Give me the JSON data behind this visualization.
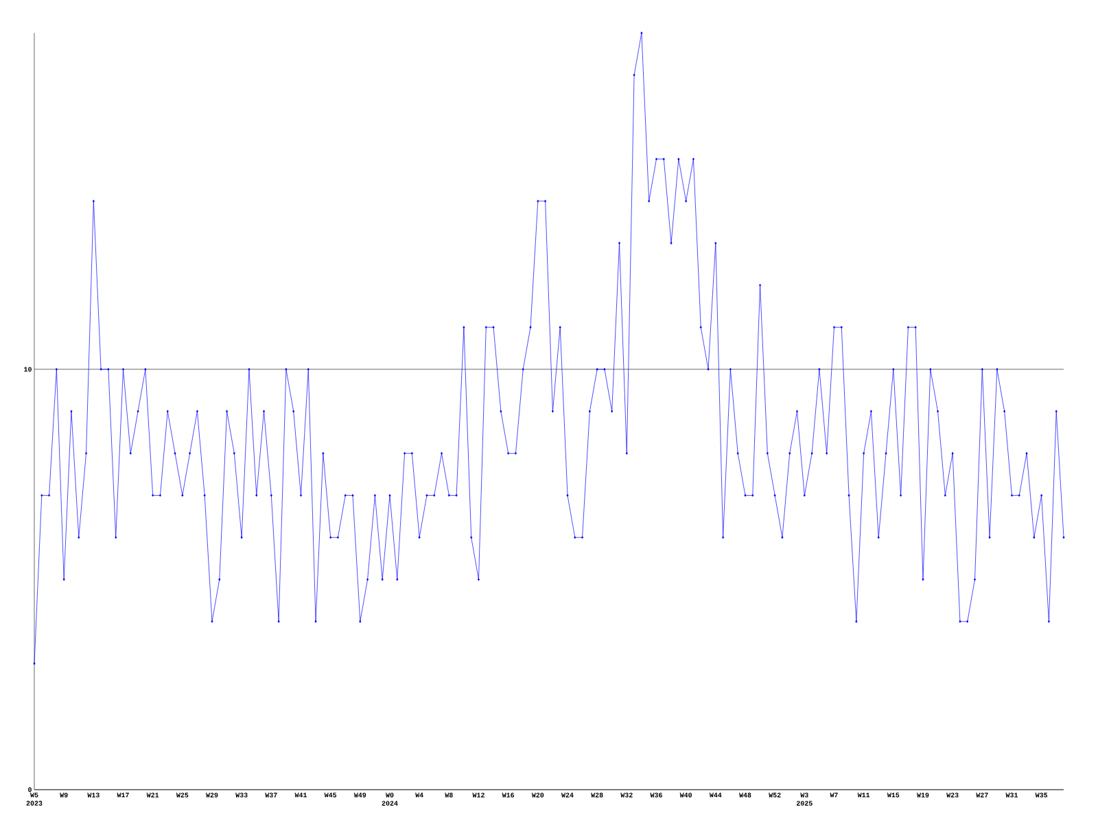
{
  "chart_data": {
    "type": "line",
    "categories": [
      "W5 2023",
      null,
      null,
      null,
      "W9",
      null,
      null,
      null,
      "W13",
      null,
      null,
      null,
      "W17",
      null,
      null,
      null,
      "W21",
      null,
      null,
      null,
      "W25",
      null,
      null,
      null,
      "W29",
      null,
      null,
      null,
      "W33",
      null,
      null,
      null,
      "W37",
      null,
      null,
      null,
      "W41",
      null,
      null,
      null,
      "W45",
      null,
      null,
      null,
      "W49",
      null,
      null,
      null,
      "W0 2024",
      null,
      null,
      null,
      "W4",
      null,
      null,
      null,
      "W8",
      null,
      null,
      null,
      "W12",
      null,
      null,
      null,
      "W16",
      null,
      null,
      null,
      "W20",
      null,
      null,
      null,
      "W24",
      null,
      null,
      null,
      "W28",
      null,
      null,
      null,
      "W32",
      null,
      null,
      null,
      "W36",
      null,
      null,
      null,
      "W40",
      null,
      null,
      null,
      "W44",
      null,
      null,
      null,
      "W48",
      null,
      null,
      null,
      "W52",
      null,
      null,
      null,
      "W3 2025",
      null,
      null,
      null,
      "W7",
      null,
      null,
      null,
      "W11",
      null,
      null,
      null,
      "W15",
      null,
      null,
      null,
      "W19",
      null,
      null,
      null,
      "W23",
      null,
      null,
      null,
      "W27",
      null,
      null,
      null,
      "W31",
      null,
      null,
      null,
      "W35",
      null,
      null,
      null
    ],
    "values": [
      3,
      7,
      7,
      10,
      5,
      9,
      6,
      8,
      14,
      10,
      10,
      6,
      10,
      8,
      9,
      10,
      7,
      7,
      9,
      8,
      7,
      8,
      9,
      7,
      4,
      5,
      9,
      8,
      6,
      10,
      7,
      9,
      7,
      4,
      10,
      9,
      7,
      10,
      4,
      8,
      6,
      6,
      7,
      7,
      4,
      5,
      7,
      5,
      7,
      5,
      8,
      8,
      6,
      7,
      7,
      8,
      7,
      7,
      11,
      6,
      5,
      11,
      11,
      9,
      8,
      8,
      10,
      11,
      14,
      14,
      9,
      11,
      7,
      6,
      6,
      9,
      10,
      10,
      9,
      13,
      8,
      17,
      18,
      14,
      15,
      15,
      13,
      15,
      14,
      15,
      11,
      10,
      13,
      6,
      10,
      8,
      7,
      7,
      12,
      8,
      7,
      6,
      8,
      9,
      7,
      8,
      10,
      8,
      11,
      11,
      7,
      4,
      8,
      9,
      6,
      8,
      10,
      7,
      11,
      11,
      5,
      10,
      9,
      7,
      8,
      4,
      4,
      5,
      10,
      6,
      10,
      9,
      7,
      7,
      8,
      6,
      7,
      4,
      9,
      6
    ],
    "color": "#0000ff",
    "marker": "diamond",
    "ylim": [
      0,
      18
    ],
    "yticks": [
      0,
      10
    ],
    "grid": "y"
  }
}
